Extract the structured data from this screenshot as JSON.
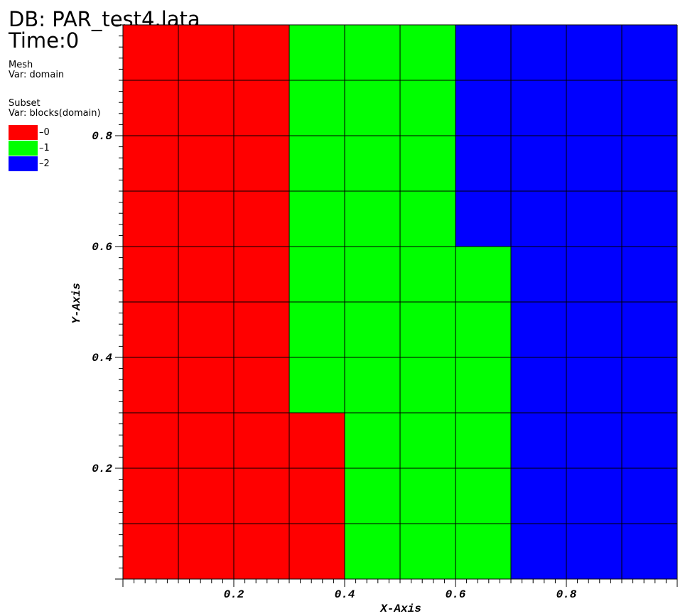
{
  "header": {
    "db": "DB: PAR_test4.lata",
    "time": "Time:0"
  },
  "mesh_block": {
    "title": "Mesh",
    "var": "Var: domain"
  },
  "subset_block": {
    "title": "Subset",
    "var": "Var: blocks(domain)",
    "entries": [
      {
        "label": "0",
        "color": "#ff0000"
      },
      {
        "label": "1",
        "color": "#00ff00"
      },
      {
        "label": "2",
        "color": "#0000ff"
      }
    ]
  },
  "chart_data": {
    "type": "heatmap",
    "xlabel": "X-Axis",
    "ylabel": "Y-Axis",
    "xlim": [
      0,
      1
    ],
    "ylim": [
      0,
      1
    ],
    "x_ticks": [
      0.2,
      0.4,
      0.6,
      0.8
    ],
    "y_ticks": [
      0.2,
      0.4,
      0.6,
      0.8
    ],
    "x_tick_labels": [
      "0.2",
      "0.4",
      "0.6",
      "0.8"
    ],
    "y_tick_labels": [
      "0.2",
      "0.4",
      "0.6",
      "0.8"
    ],
    "grid": true,
    "cell_size": 0.1,
    "colors": {
      "0": "#ff0000",
      "1": "#00ff00",
      "2": "#0000ff"
    },
    "rows_top_to_bottom": [
      [
        0,
        0,
        0,
        1,
        1,
        1,
        2,
        2,
        2,
        2
      ],
      [
        0,
        0,
        0,
        1,
        1,
        1,
        2,
        2,
        2,
        2
      ],
      [
        0,
        0,
        0,
        1,
        1,
        1,
        2,
        2,
        2,
        2
      ],
      [
        0,
        0,
        0,
        1,
        1,
        1,
        2,
        2,
        2,
        2
      ],
      [
        0,
        0,
        0,
        1,
        1,
        1,
        1,
        2,
        2,
        2
      ],
      [
        0,
        0,
        0,
        1,
        1,
        1,
        1,
        2,
        2,
        2
      ],
      [
        0,
        0,
        0,
        1,
        1,
        1,
        1,
        2,
        2,
        2
      ],
      [
        0,
        0,
        0,
        0,
        1,
        1,
        1,
        2,
        2,
        2
      ],
      [
        0,
        0,
        0,
        0,
        1,
        1,
        1,
        2,
        2,
        2
      ],
      [
        0,
        0,
        0,
        0,
        1,
        1,
        1,
        2,
        2,
        2
      ]
    ]
  }
}
